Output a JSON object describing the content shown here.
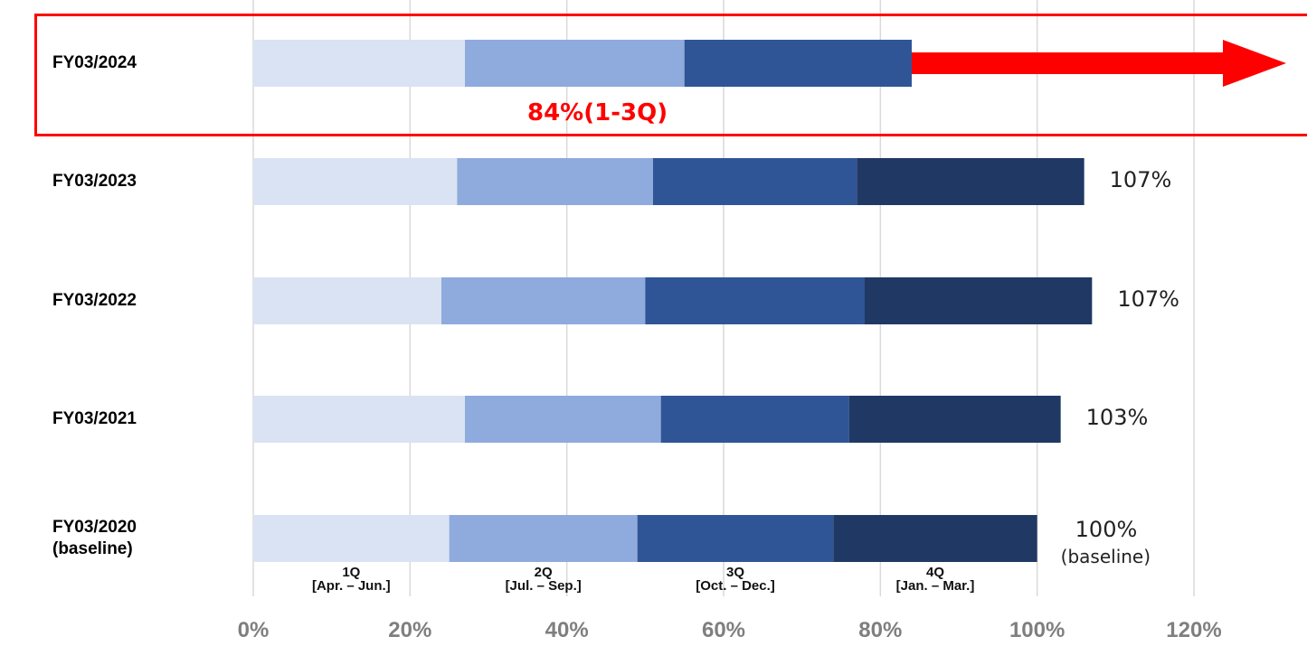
{
  "chart_data": {
    "type": "bar",
    "orientation": "horizontal",
    "stacked": true,
    "categories": [
      "FY03/2024",
      "FY03/2023",
      "FY03/2022",
      "FY03/2021",
      "FY03/2020 (baseline)"
    ],
    "category_lines": [
      [
        "FY03/2024"
      ],
      [
        "FY03/2023"
      ],
      [
        "FY03/2022"
      ],
      [
        "FY03/2021"
      ],
      [
        "FY03/2020",
        "(baseline)"
      ]
    ],
    "series": [
      {
        "name": "1Q [Apr. – Jun.]",
        "values": [
          27,
          26,
          24,
          27,
          25
        ]
      },
      {
        "name": "2Q [Jul. – Sep.]",
        "values": [
          28,
          25,
          26,
          25,
          24
        ]
      },
      {
        "name": "3Q [Oct. – Dec.]",
        "values": [
          29,
          26,
          28,
          24,
          25
        ]
      },
      {
        "name": "4Q [Jan. – Mar.]",
        "values": [
          0,
          29,
          29,
          27,
          26
        ]
      }
    ],
    "series_labels": [
      {
        "q": "1Q",
        "period": "[Apr. – Jun.]"
      },
      {
        "q": "2Q",
        "period": "[Jul. – Sep.]"
      },
      {
        "q": "3Q",
        "period": "[Oct. – Dec.]"
      },
      {
        "q": "4Q",
        "period": "[Jan. – Mar.]"
      }
    ],
    "totals": [
      "",
      "107%",
      "107%",
      "103%",
      "100%"
    ],
    "total_sub": [
      "",
      "",
      "",
      "",
      "(baseline)"
    ],
    "annotation": "84%(1-3Q)",
    "xlim": [
      0,
      120
    ],
    "xticks": [
      0,
      20,
      40,
      60,
      80,
      100,
      120
    ],
    "xtick_labels": [
      "0%",
      "20%",
      "40%",
      "60%",
      "80%",
      "100%",
      "120%"
    ],
    "grid": true,
    "colors": [
      "#dae3f3",
      "#8faadc",
      "#2f5597",
      "#203864"
    ],
    "highlight_color": "#ff0000",
    "title": "",
    "xlabel": "",
    "ylabel": ""
  }
}
